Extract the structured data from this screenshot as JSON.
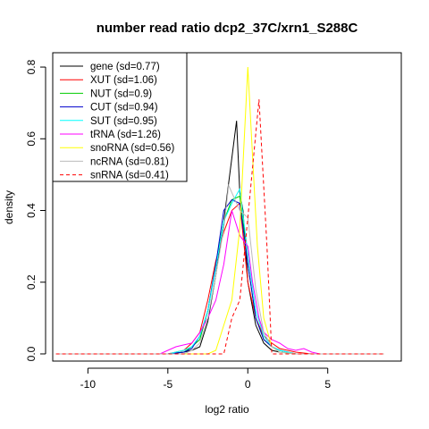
{
  "chart_data": {
    "type": "line",
    "title": "number read ratio dcp2_37C/xrn1_S288C",
    "xlabel": "log2 ratio",
    "ylabel": "density",
    "xlim": [
      -12.2,
      9.6
    ],
    "ylim": [
      -0.02,
      0.84
    ],
    "x_ticks": [
      -10,
      -5,
      0,
      5
    ],
    "y_ticks": [
      0.0,
      0.2,
      0.4,
      0.6,
      0.8
    ],
    "x_tick_labels": [
      "-10",
      "-5",
      "0",
      "5"
    ],
    "y_tick_labels": [
      "0.0",
      "0.2",
      "0.4",
      "0.6",
      "0.8"
    ],
    "legend_position": "top-left",
    "series": [
      {
        "name": "gene (sd=0.77)",
        "color": "#000000",
        "dash": false,
        "points": [
          [
            -12,
            0
          ],
          [
            -5,
            0
          ],
          [
            -4,
            0.005
          ],
          [
            -3.5,
            0.01
          ],
          [
            -3,
            0.02
          ],
          [
            -2.5,
            0.09
          ],
          [
            -2,
            0.22
          ],
          [
            -1.5,
            0.37
          ],
          [
            -0.7,
            0.65
          ],
          [
            -0.5,
            0.45
          ],
          [
            -0.3,
            0.4
          ],
          [
            0,
            0.2
          ],
          [
            0.5,
            0.08
          ],
          [
            1,
            0.03
          ],
          [
            1.5,
            0.01
          ],
          [
            2,
            0.005
          ],
          [
            3,
            0
          ],
          [
            8.5,
            0
          ]
        ]
      },
      {
        "name": "XUT (sd=1.06)",
        "color": "#ff0000",
        "dash": false,
        "points": [
          [
            -12,
            0
          ],
          [
            -5,
            0
          ],
          [
            -4,
            0.01
          ],
          [
            -3.5,
            0.03
          ],
          [
            -3,
            0.06
          ],
          [
            -2.5,
            0.15
          ],
          [
            -2,
            0.26
          ],
          [
            -1.5,
            0.34
          ],
          [
            -1,
            0.4
          ],
          [
            -0.5,
            0.42
          ],
          [
            0,
            0.2
          ],
          [
            0.5,
            0.1
          ],
          [
            1,
            0.05
          ],
          [
            1.5,
            0.03
          ],
          [
            2,
            0.015
          ],
          [
            2.5,
            0.01
          ],
          [
            3,
            0.005
          ],
          [
            4,
            0
          ],
          [
            8.5,
            0
          ]
        ]
      },
      {
        "name": "NUT (sd=0.9)",
        "color": "#00cc00",
        "dash": false,
        "points": [
          [
            -12,
            0
          ],
          [
            -5,
            0
          ],
          [
            -4,
            0.005
          ],
          [
            -3.5,
            0.02
          ],
          [
            -3,
            0.04
          ],
          [
            -2.5,
            0.12
          ],
          [
            -2,
            0.25
          ],
          [
            -1.5,
            0.37
          ],
          [
            -1,
            0.43
          ],
          [
            -0.5,
            0.44
          ],
          [
            0,
            0.25
          ],
          [
            0.5,
            0.1
          ],
          [
            1,
            0.04
          ],
          [
            1.5,
            0.02
          ],
          [
            2,
            0.01
          ],
          [
            3,
            0
          ],
          [
            8.5,
            0
          ]
        ]
      },
      {
        "name": "CUT (sd=0.94)",
        "color": "#0000cc",
        "dash": false,
        "points": [
          [
            -12,
            0
          ],
          [
            -5,
            0
          ],
          [
            -4,
            0.005
          ],
          [
            -3.5,
            0.015
          ],
          [
            -3,
            0.05
          ],
          [
            -2.5,
            0.12
          ],
          [
            -2,
            0.25
          ],
          [
            -1.5,
            0.4
          ],
          [
            -1,
            0.43
          ],
          [
            -0.5,
            0.42
          ],
          [
            0,
            0.25
          ],
          [
            0.5,
            0.1
          ],
          [
            1,
            0.04
          ],
          [
            1.5,
            0.02
          ],
          [
            2,
            0.01
          ],
          [
            3,
            0
          ],
          [
            8.5,
            0
          ]
        ]
      },
      {
        "name": "SUT (sd=0.95)",
        "color": "#00ffff",
        "dash": false,
        "points": [
          [
            -12,
            0
          ],
          [
            -5,
            0
          ],
          [
            -4,
            0.01
          ],
          [
            -3.5,
            0.02
          ],
          [
            -3,
            0.05
          ],
          [
            -2.5,
            0.12
          ],
          [
            -2,
            0.24
          ],
          [
            -1.5,
            0.37
          ],
          [
            -1,
            0.42
          ],
          [
            -0.5,
            0.46
          ],
          [
            0,
            0.28
          ],
          [
            0.5,
            0.12
          ],
          [
            1,
            0.05
          ],
          [
            1.5,
            0.02
          ],
          [
            2,
            0.01
          ],
          [
            3,
            0
          ],
          [
            8.5,
            0
          ]
        ]
      },
      {
        "name": "tRNA (sd=1.26)",
        "color": "#ff00ff",
        "dash": false,
        "points": [
          [
            -12,
            0
          ],
          [
            -5.5,
            0
          ],
          [
            -5,
            0.01
          ],
          [
            -4.5,
            0.02
          ],
          [
            -4,
            0.025
          ],
          [
            -3.5,
            0.03
          ],
          [
            -3,
            0.06
          ],
          [
            -2.5,
            0.1
          ],
          [
            -2,
            0.15
          ],
          [
            -1.5,
            0.25
          ],
          [
            -1,
            0.4
          ],
          [
            -0.5,
            0.33
          ],
          [
            0,
            0.3
          ],
          [
            0.3,
            0.2
          ],
          [
            0.7,
            0.1
          ],
          [
            1,
            0.06
          ],
          [
            1.5,
            0.04
          ],
          [
            2,
            0.03
          ],
          [
            2.5,
            0.015
          ],
          [
            3,
            0.01
          ],
          [
            3.5,
            0.015
          ],
          [
            4,
            0.005
          ],
          [
            4.5,
            0
          ],
          [
            8.5,
            0
          ]
        ]
      },
      {
        "name": "snoRNA (sd=0.56)",
        "color": "#ffff00",
        "dash": false,
        "points": [
          [
            -12,
            0
          ],
          [
            -2.5,
            0
          ],
          [
            -2,
            0.01
          ],
          [
            -1.5,
            0.08
          ],
          [
            -1,
            0.15
          ],
          [
            -0.5,
            0.35
          ],
          [
            0,
            0.8
          ],
          [
            0.3,
            0.55
          ],
          [
            0.6,
            0.3
          ],
          [
            1,
            0.1
          ],
          [
            1.5,
            0.02
          ],
          [
            2,
            0.005
          ],
          [
            3,
            0
          ],
          [
            8.5,
            0
          ]
        ]
      },
      {
        "name": "ncRNA (sd=0.81)",
        "color": "#bbbbbb",
        "dash": false,
        "points": [
          [
            -12,
            0
          ],
          [
            -4,
            0
          ],
          [
            -3.5,
            0.01
          ],
          [
            -3,
            0.03
          ],
          [
            -2.5,
            0.1
          ],
          [
            -2,
            0.22
          ],
          [
            -1.5,
            0.35
          ],
          [
            -1.2,
            0.47
          ],
          [
            -1,
            0.45
          ],
          [
            -0.5,
            0.4
          ],
          [
            0,
            0.38
          ],
          [
            0.5,
            0.18
          ],
          [
            1,
            0.06
          ],
          [
            1.5,
            0.02
          ],
          [
            2,
            0.005
          ],
          [
            3,
            0
          ],
          [
            8.5,
            0
          ]
        ]
      },
      {
        "name": "snRNA (sd=0.41)",
        "color": "#ff0000",
        "dash": true,
        "points": [
          [
            -12,
            0
          ],
          [
            -1.5,
            0
          ],
          [
            -1,
            0.1
          ],
          [
            -0.5,
            0.15
          ],
          [
            0,
            0.38
          ],
          [
            0.7,
            0.71
          ],
          [
            1.2,
            0.3
          ],
          [
            1.5,
            0
          ],
          [
            8.5,
            0
          ]
        ]
      }
    ]
  }
}
